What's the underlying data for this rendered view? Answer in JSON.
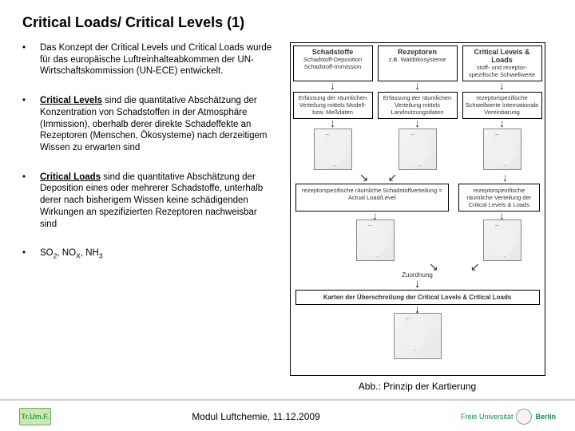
{
  "title": "Critical Loads/ Critical Levels (1)",
  "bullets": [
    {
      "html": "Das Konzept der Critical Levels und Critical Loads wurde für das europäische Luftreinhalteabkommen der UN-Wirtschaftskommission (UN-ECE) entwickelt."
    },
    {
      "html": "<span class='bold underline'>Critical Levels</span> sind die quantitative Abschätzung der Konzentration von Schadstoffen in der Atmosphäre (Immission), oberhalb derer direkte Schadeffekte an Rezeptoren (Menschen, Ökosysteme) nach derzeitigem Wissen zu erwarten sind"
    },
    {
      "html": "<span class='bold underline'>Critical Loads</span> sind die quantitative Abschätzung der Deposition eines oder mehrerer Schadstoffe, unterhalb derer nach bisherigem Wissen keine schädigenden Wirkungen an spezifizierten Rezeptoren nachweisbar sind"
    },
    {
      "html": "SO<sub>2</sub>, NO<sub>X</sub>, NH<sub>3</sub>"
    }
  ],
  "figure": {
    "headers": [
      "Schadstoffe",
      "Rezeptoren",
      "Critical Levels & Loads"
    ],
    "sub": [
      "Schadstoff-Deposition Schadstoff-Immission",
      "z.B. Waldökosysteme",
      "stoff- und rezeptor-spezifische Schwellwerte"
    ],
    "row2": [
      "Erfassung der räumlichen Verteilung mittels Modell- bzw. Meßdaten",
      "Erfassung der räumlichen Verteilung mittels Landnutzungsdaten",
      "rezeptorspezifische Schwellwerte Internationale Vereinbarung"
    ],
    "merge_left": "rezeptorspezifische räumliche Schadstoffverteilung = Actual Load/Level",
    "merge_right": "rezeptorspezifische räumliche Verteilung der Critical Levels & Loads",
    "zuordnung": "Zuordnung",
    "bottom": "Karten der Überschreitung der Critical Levels & Critical Loads",
    "map_labels": [
      "",
      "",
      ""
    ]
  },
  "caption": "Abb.: Prinzip der Kartierung",
  "footer": {
    "center": "Modul Luftchemie, 11.12.2009",
    "left_logo": "Tr.Um.F.",
    "right_logo_line1": "Freie Universität",
    "right_logo_line2": "Berlin"
  },
  "colors": {
    "accent": "#069546",
    "rule": "#d0d0d0"
  }
}
